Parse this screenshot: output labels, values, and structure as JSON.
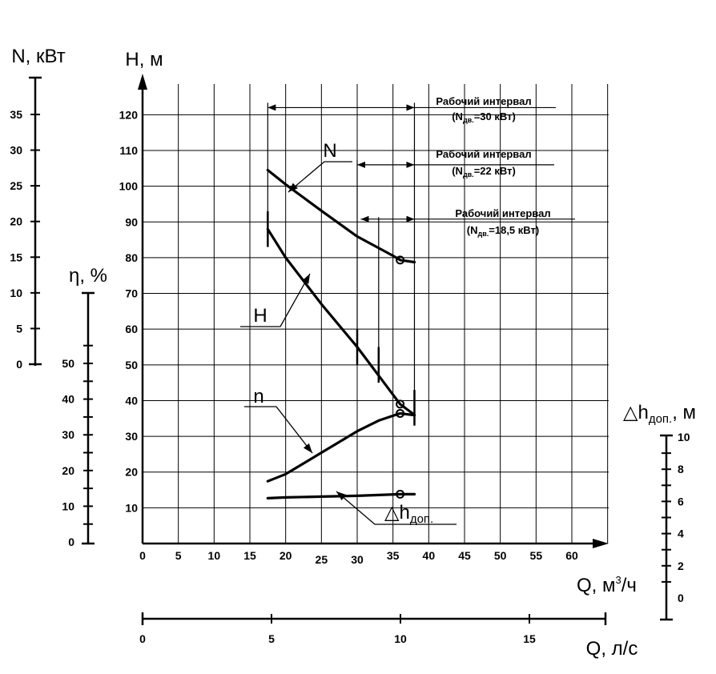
{
  "chart_data": {
    "type": "line",
    "grid": true,
    "axes": {
      "q_m3h": {
        "label": "Q, м",
        "sup": "3",
        "unit_tail": "/ч",
        "range": [
          0,
          65
        ],
        "ticks": [
          "0",
          "5",
          "10",
          "15",
          "20",
          "25",
          "30",
          "35",
          "40",
          "45",
          "50",
          "55",
          "60"
        ]
      },
      "q_ls": {
        "label": "Q, л/с",
        "range": [
          0,
          18
        ],
        "ticks": [
          "0",
          "5",
          "10",
          "15"
        ]
      },
      "H": {
        "label": "H, м",
        "range": [
          0,
          125
        ],
        "ticks": [
          "10",
          "20",
          "30",
          "40",
          "50",
          "60",
          "70",
          "80",
          "90",
          "100",
          "110",
          "120"
        ]
      },
      "N": {
        "label": "N, кВт",
        "range": [
          0,
          37
        ],
        "ticks": [
          "0",
          "5",
          "10",
          "15",
          "20",
          "25",
          "30",
          "35"
        ]
      },
      "eta": {
        "label": "η, %",
        "range": [
          0,
          60
        ],
        "ticks": [
          "0",
          "10",
          "20",
          "30",
          "40",
          "50"
        ]
      },
      "npsh": {
        "label": "△h",
        "sub": "доп.",
        "unit_tail": ", м",
        "range": [
          0,
          10
        ],
        "ticks": [
          "0",
          "2",
          "4",
          "6",
          "8",
          "10"
        ]
      }
    },
    "series": [
      {
        "name": "N",
        "axis": "N",
        "x": [
          17.5,
          20,
          25,
          30,
          35,
          36,
          38
        ],
        "y": [
          27.2,
          25.2,
          21.5,
          17.9,
          15.2,
          14.6,
          14.3
        ]
      },
      {
        "name": "H",
        "axis": "H",
        "x": [
          17.5,
          20,
          25,
          30,
          33,
          36,
          38
        ],
        "y": [
          88,
          80,
          67,
          55,
          47,
          39,
          36
        ]
      },
      {
        "name": "n",
        "axis": "eta",
        "x": [
          17.5,
          20,
          25,
          30,
          33,
          36,
          38
        ],
        "y": [
          17,
          19,
          25,
          31,
          34,
          36,
          35.5
        ]
      },
      {
        "name": "△h",
        "sub": "доп.",
        "axis": "npsh",
        "x": [
          17.5,
          20,
          25,
          30,
          36,
          38
        ],
        "y": [
          6.2,
          6.25,
          6.3,
          6.35,
          6.45,
          6.45
        ]
      }
    ],
    "markers": [
      {
        "series": "N",
        "x": 36,
        "y": 14.6
      },
      {
        "series": "H",
        "x": 36,
        "y": 39
      },
      {
        "series": "n",
        "x": 36,
        "y": 36
      },
      {
        "series": "△h",
        "x": 36,
        "y": 6.45
      }
    ],
    "working_limits_H": [
      {
        "x": 17.5,
        "y_from": 83,
        "y_to": 93
      },
      {
        "x": 30.0,
        "y_from": 50,
        "y_to": 60
      },
      {
        "x": 33.0,
        "y_from": 45,
        "y_to": 55
      },
      {
        "x": 38.0,
        "y_from": 33,
        "y_to": 43
      }
    ],
    "annotations": [
      {
        "line1": "Рабочий интервал",
        "line2_pre": "(N",
        "line2_sub": "дв.",
        "line2_post": "=30 кВт)",
        "x_from": 17.5,
        "x_to": 38,
        "y_level": 122
      },
      {
        "line1": "Рабочий интервал",
        "line2_pre": "(N",
        "line2_sub": "дв.",
        "line2_post": "=22 кВт)",
        "x_from": 30,
        "x_to": 38,
        "y_level": 106
      },
      {
        "line1": "Рабочий интервал",
        "line2_pre": "(N",
        "line2_sub": "дв.",
        "line2_post": "=18,5 кВт)",
        "x_from": 30,
        "x_to": 38,
        "y_level": 90
      }
    ]
  }
}
